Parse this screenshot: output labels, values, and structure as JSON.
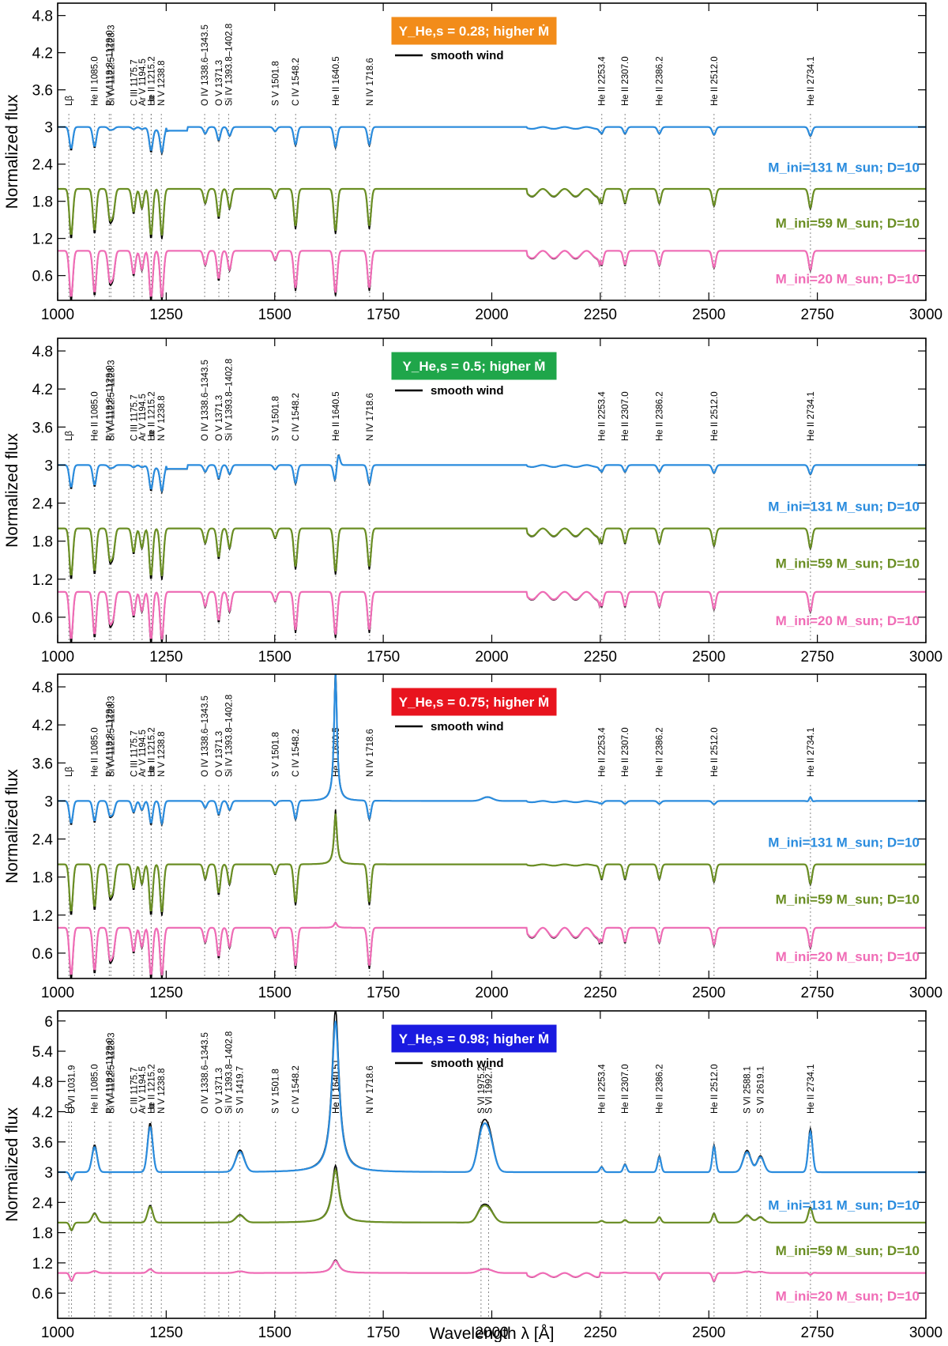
{
  "chart_data": {
    "type": "line",
    "common": {
      "x_range": [
        1000,
        3000
      ],
      "x_ticks": [
        1000,
        1250,
        1500,
        1750,
        2000,
        2250,
        2500,
        2750,
        3000
      ],
      "ylabel": "Normalized flux",
      "xlabel": "Wavelength λ [Å]",
      "legend_label": "smooth wind",
      "series_colors": {
        "blue": "#2a8cde",
        "green": "#6a8e23",
        "pink": "#f06cb6",
        "smooth": "#000000"
      },
      "series_labels": [
        "M_ini=131 M_sun; D=10",
        "M_ini=59 M_sun; D=10",
        "M_ini=20 M_sun; D=10"
      ],
      "line_labels": [
        {
          "x": 1025.7,
          "text": "Lβ"
        },
        {
          "x": 1085.0,
          "text": "He II 1085.0"
        },
        {
          "x": 1118.8,
          "text": "P V 1118.8–1128.0"
        },
        {
          "x": 1122.5,
          "text": "Si IV 1122.5–1128.3"
        },
        {
          "x": 1175.7,
          "text": "C III 1175.7"
        },
        {
          "x": 1194.5,
          "text": "Ar V 1194.5"
        },
        {
          "x": 1215.2,
          "text": "He II 1215.2"
        },
        {
          "x": 1215.7,
          "text": "Lα"
        },
        {
          "x": 1238.8,
          "text": "N V 1238.8"
        },
        {
          "x": 1338.6,
          "text": "O IV 1338.6–1343.5"
        },
        {
          "x": 1371.3,
          "text": "O V 1371.3"
        },
        {
          "x": 1393.8,
          "text": "Si IV 1393.8–1402.8"
        },
        {
          "x": 1501.8,
          "text": "S V 1501.8"
        },
        {
          "x": 1548.2,
          "text": "C IV 1548.2"
        },
        {
          "x": 1640.5,
          "text": "He II 1640.5"
        },
        {
          "x": 1718.6,
          "text": "N IV 1718.6"
        },
        {
          "x": 2253.4,
          "text": "He II 2253.4"
        },
        {
          "x": 2307.0,
          "text": "He II 2307.0"
        },
        {
          "x": 2386.2,
          "text": "He II 2386.2"
        },
        {
          "x": 2512.0,
          "text": "He II 2512.0"
        },
        {
          "x": 2734.1,
          "text": "He II 2734.1"
        }
      ]
    },
    "panels": [
      {
        "badge": "Y_He,s = 0.28; higher Ṁ",
        "badge_color": "#f28c1a",
        "y_range": [
          0.2,
          5.0
        ],
        "y_ticks": [
          0.6,
          1.2,
          1.8,
          2.4,
          3,
          3.6,
          4.2,
          4.8
        ],
        "profile": "absorption",
        "offsets": [
          3,
          2,
          1
        ],
        "label_y": [
          2.35,
          1.45,
          0.55
        ]
      },
      {
        "badge": "Y_He,s = 0.5; higher Ṁ",
        "badge_color": "#1fa64a",
        "y_range": [
          0.2,
          5.0
        ],
        "y_ticks": [
          0.6,
          1.2,
          1.8,
          2.4,
          3,
          3.6,
          4.2,
          4.8
        ],
        "profile": "absorption2",
        "offsets": [
          3,
          2,
          1
        ],
        "label_y": [
          2.35,
          1.45,
          0.55
        ]
      },
      {
        "badge": "Y_He,s = 0.75; higher Ṁ",
        "badge_color": "#e8141e",
        "y_range": [
          0.2,
          5.0
        ],
        "y_ticks": [
          0.6,
          1.2,
          1.8,
          2.4,
          3,
          3.6,
          4.2,
          4.8
        ],
        "profile": "mixed",
        "offsets": [
          3,
          2,
          1
        ],
        "label_y": [
          2.35,
          1.45,
          0.55
        ]
      },
      {
        "badge": "Y_He,s = 0.98; higher Ṁ",
        "badge_color": "#1a1ae0",
        "y_range": [
          0.1,
          6.2
        ],
        "y_ticks": [
          0.6,
          1.2,
          1.8,
          2.4,
          3,
          3.6,
          4.2,
          4.8,
          5.4,
          6
        ],
        "profile": "emission",
        "offsets": [
          3,
          2,
          1
        ],
        "label_y": [
          2.35,
          1.45,
          0.55
        ],
        "extra_line_labels": [
          {
            "x": 1031.9,
            "text": "O VI 1031.9"
          },
          {
            "x": 1419.7,
            "text": "S VI 1419.7"
          },
          {
            "x": 1640.51,
            "text": "He II 1640.51"
          },
          {
            "x": 1975.2,
            "text": "S VI 1975.2"
          },
          {
            "x": 1992.7,
            "text": "S VI 1992.7"
          },
          {
            "x": 2588.1,
            "text": "S VI 2588.1"
          },
          {
            "x": 2619.1,
            "text": "S VI 2619.1"
          }
        ]
      }
    ]
  }
}
